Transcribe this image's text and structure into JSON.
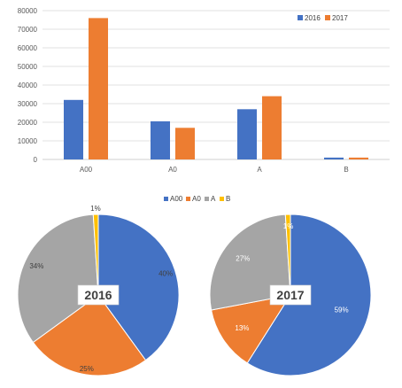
{
  "colors": {
    "2016": "#4472C4",
    "2017": "#ED7D31",
    "A00": "#4472C4",
    "A0": "#ED7D31",
    "A": "#A5A5A5",
    "B": "#FFC000",
    "grid": "#d9d9d9",
    "axis": "#bfbfbf"
  },
  "chart_data": [
    {
      "type": "bar",
      "categories": [
        "A00",
        "A0",
        "A",
        "B"
      ],
      "series": [
        {
          "name": "2016",
          "values": [
            32000,
            20500,
            27000,
            1000
          ]
        },
        {
          "name": "2017",
          "values": [
            76000,
            17000,
            34000,
            1000
          ]
        }
      ],
      "yticks": [
        "0",
        "10000",
        "20000",
        "30000",
        "40000",
        "50000",
        "60000",
        "70000",
        "80000"
      ],
      "ylim": [
        0,
        80000
      ],
      "grid": true,
      "legend": "top-right",
      "title": "",
      "xlabel": "",
      "ylabel": ""
    },
    {
      "type": "pie",
      "center_label": "2016",
      "categories": [
        "A00",
        "A0",
        "A",
        "B"
      ],
      "values": [
        40,
        25,
        34,
        1
      ],
      "labels": [
        "40%",
        "25%",
        "34%",
        "1%"
      ],
      "legend": "top"
    },
    {
      "type": "pie",
      "center_label": "2017",
      "categories": [
        "A00",
        "A0",
        "A",
        "B"
      ],
      "values": [
        59,
        13,
        27,
        1
      ],
      "labels": [
        "59%",
        "13%",
        "27%",
        "1%"
      ],
      "legend": "top"
    }
  ]
}
